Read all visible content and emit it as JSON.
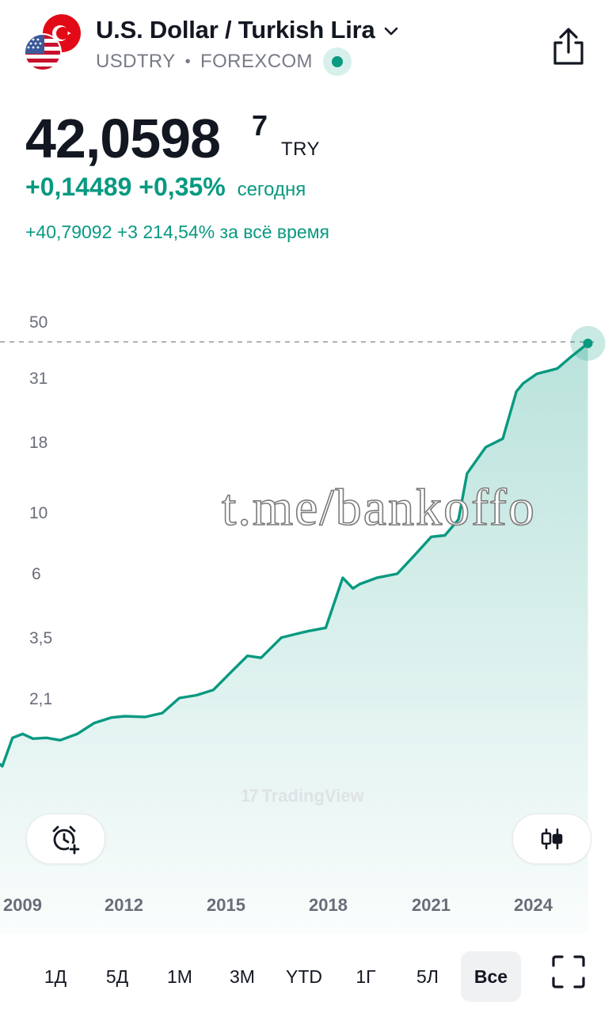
{
  "header": {
    "title": "U.S. Dollar / Turkish Lira",
    "symbol": "USDTRY",
    "exchange": "FOREXCOM",
    "separator": "•",
    "flags": [
      "us-flag",
      "turkey-flag"
    ],
    "status_color": "#089981"
  },
  "quote": {
    "price_main": "42,0598",
    "price_sup": "7",
    "currency": "TRY",
    "today_change": "+0,14489 +0,35%",
    "today_label": "сегодня",
    "alltime_change": "+40,79092 +3 214,54% за всё время"
  },
  "watermark": "t.me/bankoffo",
  "chart_data": {
    "type": "area",
    "scale": "log",
    "y_ticks": [
      "50",
      "31",
      "18",
      "10",
      "6",
      "3,5",
      "2,1"
    ],
    "x_ticks": [
      "2009",
      "2012",
      "2015",
      "2018",
      "2021",
      "2024"
    ],
    "last_value": 42.06,
    "color": "#089981",
    "x": [
      2008.1,
      2008.3,
      2008.6,
      2008.9,
      2009.2,
      2009.6,
      2010.0,
      2010.5,
      2011.0,
      2011.5,
      2011.9,
      2012.5,
      2013.0,
      2013.5,
      2014.0,
      2014.5,
      2015.0,
      2015.5,
      2015.9,
      2016.5,
      2016.9,
      2017.3,
      2017.8,
      2018.3,
      2018.6,
      2018.8,
      2019.3,
      2019.9,
      2020.4,
      2020.9,
      2021.3,
      2021.7,
      2021.95,
      2022.5,
      2023.0,
      2023.4,
      2023.6,
      2024.0,
      2024.6,
      2025.0,
      2025.5
    ],
    "y": [
      1.2,
      1.18,
      1.5,
      1.55,
      1.49,
      1.5,
      1.47,
      1.55,
      1.7,
      1.78,
      1.8,
      1.79,
      1.85,
      2.1,
      2.15,
      2.25,
      2.6,
      3.0,
      2.95,
      3.5,
      3.6,
      3.7,
      3.8,
      5.8,
      5.3,
      5.5,
      5.8,
      6.0,
      7.0,
      8.2,
      8.3,
      9.5,
      14.0,
      17.5,
      18.8,
      28.0,
      30.0,
      32.5,
      34.0,
      37.5,
      42.06
    ]
  },
  "watermark_brand": "TradingView",
  "timeframes": [
    "1Д",
    "5Д",
    "1М",
    "3М",
    "YTD",
    "1Г",
    "5Л",
    "Все"
  ],
  "active_timeframe": "Все",
  "icons": {
    "share": "share-icon",
    "alert": "add-alert-icon",
    "chart_type": "candlestick-icon",
    "fullscreen": "fullscreen-icon"
  }
}
